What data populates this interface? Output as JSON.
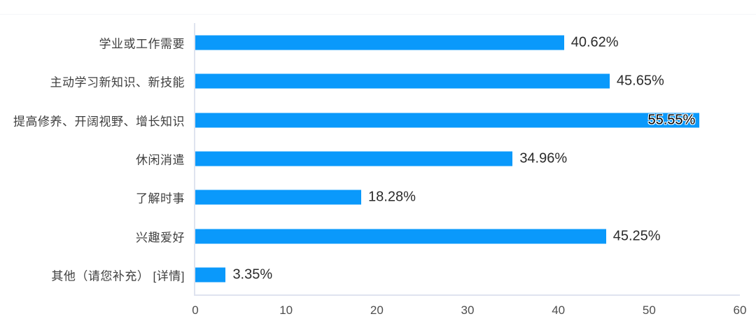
{
  "chart_data": {
    "type": "bar",
    "orientation": "horizontal",
    "title": "",
    "xlabel": "",
    "ylabel": "",
    "xlim": [
      0,
      60
    ],
    "x_ticks": [
      "0",
      "10",
      "20",
      "30",
      "40",
      "50",
      "60"
    ],
    "grid": false,
    "legend": false,
    "bar_color": "#0a99fb",
    "axis_line_color": "#dfe3ef",
    "categories": [
      "学业或工作需要",
      "主动学习新知识、新技能",
      "提高修养、开阔视野、增长知识",
      "休闲消遣",
      "了解时事",
      "兴趣爱好",
      "其他（请您补充）  [详情]"
    ],
    "values": [
      40.62,
      45.65,
      55.55,
      34.96,
      18.28,
      45.25,
      3.35
    ],
    "value_labels": [
      "40.62%",
      "45.65%",
      "55.55%",
      "34.96%",
      "18.28%",
      "45.25%",
      "3.35%"
    ],
    "value_label_inside": [
      false,
      false,
      true,
      false,
      false,
      false,
      false
    ]
  }
}
